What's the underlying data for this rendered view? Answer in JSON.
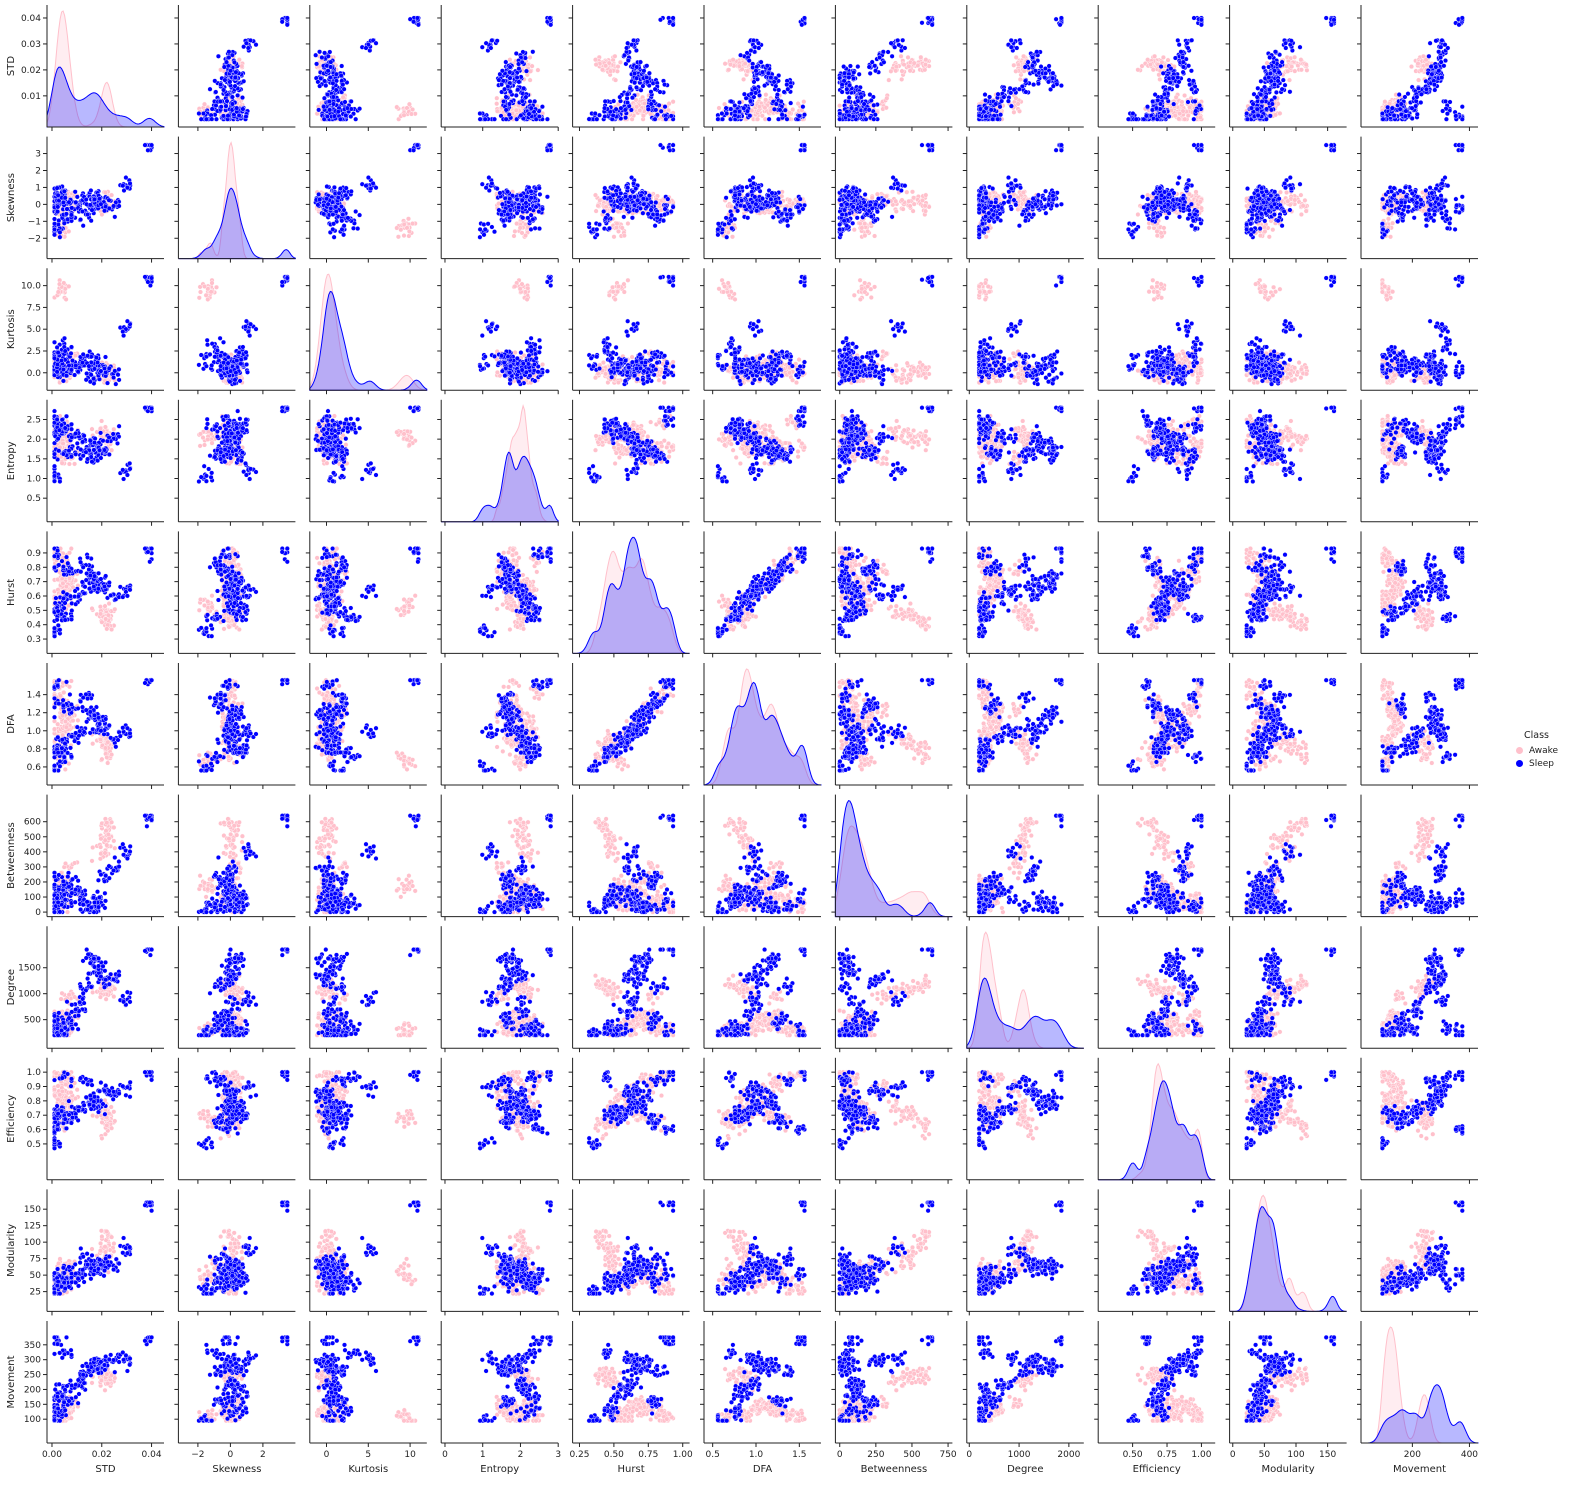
{
  "chart_data": {
    "type": "scatter",
    "subtype": "pairplot",
    "variables": [
      "STD",
      "Skewness",
      "Kurtosis",
      "Entropy",
      "Hurst",
      "DFA",
      "Betweenness",
      "Degree",
      "Efficiency",
      "Modularity",
      "Movement"
    ],
    "diagonal": "kde",
    "hue": "Class",
    "legend": {
      "title": "Class",
      "placement": "right",
      "entries": [
        {
          "name": "Awake",
          "color": "#ffc0cb"
        },
        {
          "name": "Sleep",
          "color": "#0000ff"
        }
      ]
    },
    "axes": {
      "STD": {
        "range": [
          -0.002,
          0.045
        ],
        "ticks": [
          {
            "v": 0.01,
            "l": "0.01"
          },
          {
            "v": 0.02,
            "l": "0.02"
          },
          {
            "v": 0.03,
            "l": "0.03"
          },
          {
            "v": 0.04,
            "l": "0.04"
          }
        ],
        "xticks": [
          {
            "v": 0.0,
            "l": "0.00"
          },
          {
            "v": 0.02,
            "l": "0.02"
          },
          {
            "v": 0.04,
            "l": "0.04"
          }
        ],
        "data_min": 0.001,
        "data_max": 0.04
      },
      "Skewness": {
        "range": [
          -3.2,
          4.0
        ],
        "ticks": [
          {
            "v": -2,
            "l": "−2"
          },
          {
            "v": -1,
            "l": "−1"
          },
          {
            "v": 0,
            "l": "0"
          },
          {
            "v": 1,
            "l": "1"
          },
          {
            "v": 2,
            "l": "2"
          },
          {
            "v": 3,
            "l": "3"
          }
        ],
        "xticks": [
          {
            "v": -2,
            "l": "−2"
          },
          {
            "v": 0,
            "l": "0"
          },
          {
            "v": 2,
            "l": "2"
          }
        ],
        "data_min": -2.6,
        "data_max": 3.5
      },
      "Kurtosis": {
        "range": [
          -2.0,
          12.0
        ],
        "ticks": [
          {
            "v": 0.0,
            "l": "0.0"
          },
          {
            "v": 2.5,
            "l": "2.5"
          },
          {
            "v": 5.0,
            "l": "5.0"
          },
          {
            "v": 7.5,
            "l": "7.5"
          },
          {
            "v": 10.0,
            "l": "10.0"
          }
        ],
        "xticks": [
          {
            "v": 0,
            "l": "0"
          },
          {
            "v": 5,
            "l": "5"
          },
          {
            "v": 10,
            "l": "10"
          }
        ],
        "data_min": -1.3,
        "data_max": 11.0
      },
      "Entropy": {
        "range": [
          -0.1,
          3.0
        ],
        "ticks": [
          {
            "v": 0.5,
            "l": "0.5"
          },
          {
            "v": 1.0,
            "l": "1.0"
          },
          {
            "v": 1.5,
            "l": "1.5"
          },
          {
            "v": 2.0,
            "l": "2.0"
          },
          {
            "v": 2.5,
            "l": "2.5"
          }
        ],
        "xticks": [
          {
            "v": 0,
            "l": "0"
          },
          {
            "v": 1,
            "l": "1"
          },
          {
            "v": 2,
            "l": "2"
          },
          {
            "v": 3,
            "l": "3"
          }
        ],
        "data_min": 0.25,
        "data_max": 2.8
      },
      "Hurst": {
        "range": [
          0.2,
          1.05
        ],
        "ticks": [
          {
            "v": 0.3,
            "l": "0.3"
          },
          {
            "v": 0.4,
            "l": "0.4"
          },
          {
            "v": 0.5,
            "l": "0.5"
          },
          {
            "v": 0.6,
            "l": "0.6"
          },
          {
            "v": 0.7,
            "l": "0.7"
          },
          {
            "v": 0.8,
            "l": "0.8"
          },
          {
            "v": 0.9,
            "l": "0.9"
          }
        ],
        "xticks": [
          {
            "v": 0.25,
            "l": "0.25"
          },
          {
            "v": 0.5,
            "l": "0.50"
          },
          {
            "v": 0.75,
            "l": "0.75"
          },
          {
            "v": 1.0,
            "l": "1.00"
          }
        ],
        "data_min": 0.32,
        "data_max": 0.93
      },
      "DFA": {
        "range": [
          0.4,
          1.75
        ],
        "ticks": [
          {
            "v": 0.6,
            "l": "0.6"
          },
          {
            "v": 0.8,
            "l": "0.8"
          },
          {
            "v": 1.0,
            "l": "1.0"
          },
          {
            "v": 1.2,
            "l": "1.2"
          },
          {
            "v": 1.4,
            "l": "1.4"
          }
        ],
        "xticks": [
          {
            "v": 0.5,
            "l": "0.5"
          },
          {
            "v": 1.0,
            "l": "1.0"
          },
          {
            "v": 1.5,
            "l": "1.5"
          }
        ],
        "data_min": 0.56,
        "data_max": 1.56
      },
      "Betweenness": {
        "range": [
          -30,
          780
        ],
        "ticks": [
          {
            "v": 0,
            "l": "0"
          },
          {
            "v": 100,
            "l": "100"
          },
          {
            "v": 200,
            "l": "200"
          },
          {
            "v": 300,
            "l": "300"
          },
          {
            "v": 400,
            "l": "400"
          },
          {
            "v": 500,
            "l": "500"
          },
          {
            "v": 600,
            "l": "600"
          }
        ],
        "xticks": [
          {
            "v": 0,
            "l": "0"
          },
          {
            "v": 250,
            "l": "250"
          },
          {
            "v": 500,
            "l": "500"
          },
          {
            "v": 750,
            "l": "750"
          }
        ],
        "data_min": 0,
        "data_max": 640
      },
      "Degree": {
        "range": [
          -50,
          2300
        ],
        "ticks": [
          {
            "v": 500,
            "l": "500"
          },
          {
            "v": 1000,
            "l": "1000"
          },
          {
            "v": 1500,
            "l": "1500"
          }
        ],
        "xticks": [
          {
            "v": 0,
            "l": "0"
          },
          {
            "v": 1000,
            "l": "1000"
          },
          {
            "v": 2000,
            "l": "2000"
          }
        ],
        "data_min": 200,
        "data_max": 1850
      },
      "Efficiency": {
        "range": [
          0.25,
          1.1
        ],
        "ticks": [
          {
            "v": 0.5,
            "l": "0.5"
          },
          {
            "v": 0.6,
            "l": "0.6"
          },
          {
            "v": 0.7,
            "l": "0.7"
          },
          {
            "v": 0.8,
            "l": "0.8"
          },
          {
            "v": 0.9,
            "l": "0.9"
          },
          {
            "v": 1.0,
            "l": "1.0"
          }
        ],
        "xticks": [
          {
            "v": 0.5,
            "l": "0.50"
          },
          {
            "v": 0.75,
            "l": "0.75"
          },
          {
            "v": 1.0,
            "l": "1.00"
          }
        ],
        "data_min": 0.43,
        "data_max": 1.0
      },
      "Modularity": {
        "range": [
          -5,
          180
        ],
        "ticks": [
          {
            "v": 25,
            "l": "25"
          },
          {
            "v": 50,
            "l": "50"
          },
          {
            "v": 75,
            "l": "75"
          },
          {
            "v": 100,
            "l": "100"
          },
          {
            "v": 125,
            "l": "125"
          },
          {
            "v": 150,
            "l": "150"
          }
        ],
        "xticks": [
          {
            "v": 0,
            "l": "0"
          },
          {
            "v": 50,
            "l": "50"
          },
          {
            "v": 100,
            "l": "100"
          },
          {
            "v": 150,
            "l": "150"
          }
        ],
        "data_min": 22,
        "data_max": 160
      },
      "Movement": {
        "range": [
          20,
          430
        ],
        "ticks": [
          {
            "v": 100,
            "l": "100"
          },
          {
            "v": 150,
            "l": "150"
          },
          {
            "v": 200,
            "l": "200"
          },
          {
            "v": 250,
            "l": "250"
          },
          {
            "v": 300,
            "l": "300"
          },
          {
            "v": 350,
            "l": "350"
          }
        ],
        "xticks": [
          {
            "v": 200,
            "l": "200"
          },
          {
            "v": 400,
            "l": "400"
          }
        ],
        "data_min": 95,
        "data_max": 375
      }
    },
    "samples": {
      "Awake": [
        [
          0.004,
          0.1,
          0.2,
          1.7,
          0.62,
          0.95,
          150,
          350,
          0.75,
          55,
          120
        ],
        [
          0.003,
          -0.2,
          0.5,
          1.6,
          0.55,
          0.85,
          50,
          280,
          0.85,
          40,
          110
        ],
        [
          0.005,
          0.0,
          -0.2,
          1.8,
          0.7,
          1.2,
          200,
          450,
          0.7,
          60,
          140
        ],
        [
          0.003,
          -0.1,
          0.0,
          1.7,
          0.82,
          1.3,
          100,
          380,
          0.68,
          45,
          125
        ],
        [
          0.022,
          0.1,
          0.3,
          2.0,
          0.45,
          0.85,
          500,
          1100,
          0.72,
          80,
          245
        ],
        [
          0.023,
          0.2,
          0.0,
          2.1,
          0.42,
          0.8,
          560,
          1150,
          0.65,
          95,
          250
        ],
        [
          0.021,
          0.0,
          -0.3,
          2.05,
          0.48,
          0.9,
          450,
          1050,
          0.7,
          70,
          240
        ],
        [
          0.006,
          0.3,
          1.0,
          1.9,
          0.75,
          1.25,
          80,
          600,
          0.95,
          50,
          130
        ],
        [
          0.004,
          -1.3,
          9.0,
          2.1,
          0.5,
          0.7,
          150,
          300,
          0.65,
          55,
          105
        ],
        [
          0.004,
          -1.5,
          10.0,
          2.0,
          0.55,
          0.65,
          180,
          250,
          0.7,
          45,
          100
        ],
        [
          0.007,
          0.5,
          2.0,
          1.5,
          0.78,
          1.2,
          300,
          900,
          0.9,
          65,
          160
        ],
        [
          0.002,
          0.1,
          0.5,
          2.3,
          0.6,
          1.0,
          60,
          320,
          0.88,
          35,
          135
        ],
        [
          0.008,
          -0.4,
          0.8,
          2.2,
          0.68,
          1.1,
          120,
          500,
          0.8,
          50,
          150
        ],
        [
          0.02,
          0.2,
          -0.2,
          2.2,
          0.5,
          0.95,
          400,
          1000,
          0.75,
          90,
          230
        ],
        [
          0.003,
          0.0,
          0.1,
          2.4,
          0.85,
          1.45,
          40,
          260,
          0.97,
          30,
          115
        ],
        [
          0.005,
          0.05,
          0.3,
          1.75,
          0.72,
          1.15,
          90,
          420,
          0.78,
          48,
          145
        ],
        [
          0.004,
          0.2,
          0.1,
          2.0,
          0.58,
          0.9,
          70,
          330,
          0.82,
          38,
          118
        ],
        [
          0.022,
          0.0,
          0.2,
          1.95,
          0.4,
          0.75,
          600,
          1200,
          0.6,
          110,
          248
        ],
        [
          0.006,
          -0.3,
          0.4,
          2.05,
          0.66,
          1.05,
          160,
          550,
          0.72,
          58,
          138
        ],
        [
          0.003,
          0.1,
          -0.1,
          1.85,
          0.9,
          1.5,
          30,
          240,
          0.99,
          28,
          108
        ]
      ],
      "Sleep": [
        [
          0.018,
          0.0,
          0.5,
          1.9,
          0.65,
          1.0,
          80,
          1400,
          0.8,
          60,
          280
        ],
        [
          0.02,
          0.2,
          1.0,
          1.8,
          0.7,
          1.1,
          50,
          1500,
          0.75,
          70,
          270
        ],
        [
          0.025,
          -0.1,
          0.0,
          2.0,
          0.6,
          0.9,
          300,
          1300,
          0.85,
          65,
          290
        ],
        [
          0.005,
          0.3,
          0.5,
          2.2,
          0.55,
          0.85,
          100,
          300,
          0.7,
          45,
          200
        ],
        [
          0.004,
          -0.5,
          2.0,
          1.7,
          0.8,
          1.3,
          200,
          500,
          0.65,
          40,
          150
        ],
        [
          0.003,
          0.1,
          0.2,
          2.1,
          0.5,
          0.8,
          150,
          250,
          0.72,
          35,
          120
        ],
        [
          0.016,
          0.5,
          1.5,
          1.6,
          0.7,
          1.2,
          20,
          1700,
          0.78,
          55,
          275
        ],
        [
          0.006,
          -1.0,
          3.0,
          2.3,
          0.45,
          0.7,
          60,
          350,
          0.95,
          40,
          330
        ],
        [
          0.002,
          0.0,
          0.0,
          2.4,
          0.9,
          1.5,
          100,
          280,
          0.6,
          50,
          370
        ],
        [
          0.03,
          1.0,
          5.0,
          1.2,
          0.65,
          1.0,
          400,
          900,
          0.9,
          90,
          300
        ],
        [
          0.001,
          -1.5,
          1.0,
          1.0,
          0.35,
          0.6,
          10,
          200,
          0.5,
          25,
          100
        ],
        [
          0.04,
          3.5,
          11.0,
          2.8,
          0.9,
          1.56,
          640,
          1850,
          1.0,
          160,
          375
        ],
        [
          0.012,
          0.2,
          0.8,
          1.95,
          0.62,
          0.98,
          110,
          800,
          0.76,
          52,
          220
        ],
        [
          0.009,
          -0.2,
          0.3,
          2.05,
          0.58,
          0.92,
          130,
          600,
          0.74,
          48,
          210
        ],
        [
          0.017,
          0.1,
          -0.5,
          1.85,
          0.74,
          1.15,
          40,
          1600,
          0.82,
          62,
          285
        ],
        [
          0.003,
          0.4,
          1.2,
          2.25,
          0.52,
          0.82,
          90,
          320,
          0.68,
          42,
          180
        ],
        [
          0.007,
          -0.3,
          0.6,
          1.65,
          0.78,
          1.25,
          170,
          450,
          0.66,
          58,
          160
        ],
        [
          0.022,
          0.0,
          0.1,
          1.75,
          0.68,
          1.05,
          250,
          1250,
          0.88,
          68,
          295
        ],
        [
          0.004,
          0.6,
          2.5,
          2.35,
          0.47,
          0.75,
          70,
          290,
          0.71,
          38,
          130
        ],
        [
          0.014,
          -0.6,
          1.8,
          1.55,
          0.82,
          1.35,
          30,
          1100,
          0.93,
          75,
          260
        ]
      ]
    }
  }
}
